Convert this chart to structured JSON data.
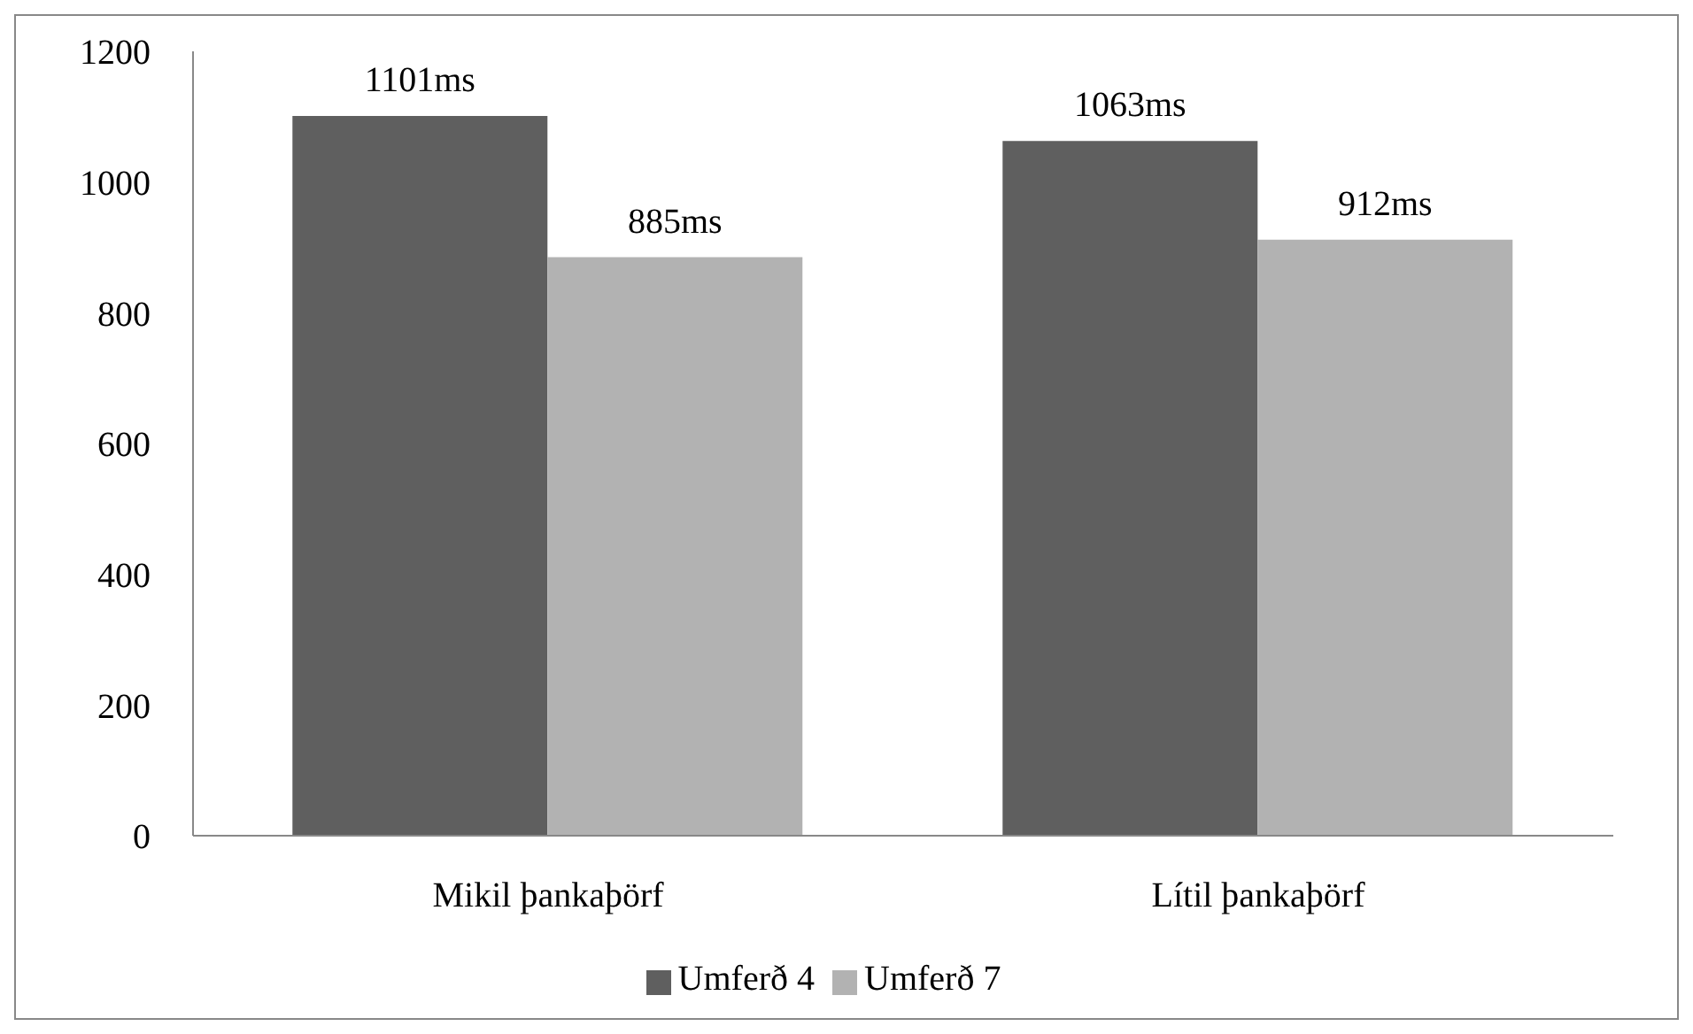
{
  "chart_data": {
    "type": "bar",
    "categories": [
      "Mikil þankaþörf",
      "Lítil þankaþörf"
    ],
    "series": [
      {
        "name": "Umferð 4",
        "color": "#5f5f5f",
        "values": [
          1101,
          1063
        ],
        "value_labels": [
          "1101ms",
          "1063ms"
        ]
      },
      {
        "name": "Umferð 7",
        "color": "#b2b2b2",
        "values": [
          885,
          912
        ],
        "value_labels": [
          "885ms",
          "912ms"
        ]
      }
    ],
    "ylim": [
      0,
      1200
    ],
    "yticks": [
      0,
      200,
      400,
      600,
      800,
      1000,
      1200
    ],
    "grid": false,
    "legend": "bottom"
  }
}
